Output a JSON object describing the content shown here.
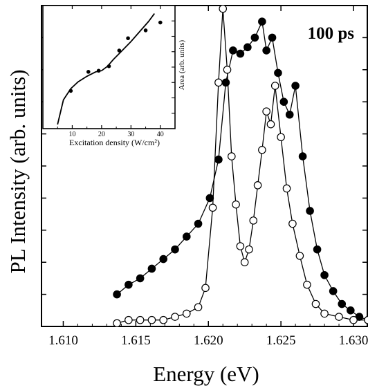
{
  "chart_data": [
    {
      "type": "scatter",
      "title": "",
      "panel_label": "100 ps",
      "xlabel": "Energy (eV)",
      "ylabel": "PL Intensity (arb. units)",
      "xlim": [
        1.6085,
        1.631
      ],
      "ylim": [
        0,
        1.0
      ],
      "xticks": [
        1.61,
        1.615,
        1.62,
        1.625,
        1.63
      ],
      "xtick_labels": [
        "1.610",
        "1.615",
        "1.620",
        "1.625",
        "1.630"
      ],
      "yticks_unlabeled": true,
      "series": [
        {
          "marker": "filled-circle",
          "connected": true,
          "x": [
            1.6137,
            1.6145,
            1.6153,
            1.6161,
            1.6169,
            1.6177,
            1.6185,
            1.6193,
            1.6201,
            1.6207,
            1.6212,
            1.6217,
            1.6222,
            1.6227,
            1.6232,
            1.6237,
            1.624,
            1.6244,
            1.6248,
            1.6252,
            1.6256,
            1.626,
            1.6265,
            1.627,
            1.6275,
            1.628,
            1.6286,
            1.6292,
            1.6298,
            1.6304,
            1.631
          ],
          "y": [
            0.1,
            0.13,
            0.15,
            0.18,
            0.21,
            0.24,
            0.28,
            0.32,
            0.4,
            0.52,
            0.76,
            0.86,
            0.85,
            0.87,
            0.9,
            0.95,
            0.86,
            0.9,
            0.79,
            0.7,
            0.66,
            0.75,
            0.53,
            0.36,
            0.24,
            0.16,
            0.11,
            0.07,
            0.05,
            0.03,
            0.02
          ]
        },
        {
          "marker": "open-circle",
          "connected": true,
          "x": [
            1.6137,
            1.6145,
            1.6153,
            1.6161,
            1.6169,
            1.6177,
            1.6185,
            1.6193,
            1.6198,
            1.6203,
            1.6207,
            1.621,
            1.6213,
            1.6216,
            1.6219,
            1.6222,
            1.6225,
            1.6228,
            1.6231,
            1.6234,
            1.6237,
            1.624,
            1.6243,
            1.6246,
            1.625,
            1.6254,
            1.6258,
            1.6263,
            1.6268,
            1.6274,
            1.628,
            1.629,
            1.63,
            1.631
          ],
          "y": [
            0.01,
            0.02,
            0.02,
            0.02,
            0.02,
            0.03,
            0.04,
            0.06,
            0.12,
            0.37,
            0.76,
            0.99,
            0.8,
            0.53,
            0.38,
            0.25,
            0.2,
            0.24,
            0.33,
            0.44,
            0.55,
            0.67,
            0.63,
            0.75,
            0.59,
            0.43,
            0.32,
            0.22,
            0.13,
            0.07,
            0.04,
            0.03,
            0.02,
            0.02
          ]
        }
      ]
    },
    {
      "type": "scatter",
      "title": "",
      "inset": true,
      "xlabel": "Excitation density (W/cm²)",
      "ylabel": "Area (arb. units)",
      "xlim": [
        0,
        45
      ],
      "ylim": [
        0,
        1.0
      ],
      "xticks": [
        10,
        20,
        30,
        40
      ],
      "xtick_labels": [
        "10",
        "20",
        "30",
        "40"
      ],
      "yticks_unlabeled": true,
      "points": {
        "x": [
          9.5,
          15.5,
          19,
          22.5,
          26,
          29,
          35,
          40
        ],
        "y": [
          0.3,
          0.47,
          0.48,
          0.52,
          0.66,
          0.77,
          0.84,
          0.91
        ]
      },
      "fit_line": {
        "x": [
          5,
          7,
          9.5,
          12,
          15,
          18,
          20,
          22,
          24,
          27,
          30,
          33,
          36,
          38
        ],
        "y": [
          0.0,
          0.22,
          0.32,
          0.38,
          0.43,
          0.47,
          0.48,
          0.52,
          0.58,
          0.66,
          0.74,
          0.83,
          0.92,
          0.99
        ]
      }
    }
  ]
}
